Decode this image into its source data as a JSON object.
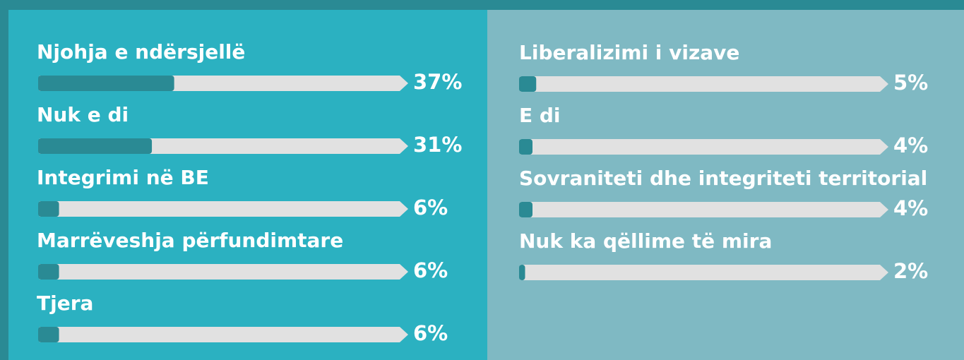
{
  "chart_data": [
    {
      "type": "progress",
      "categories": [
        "Njohja e ndërsjellë",
        "Nuk e di",
        "Integrimi në BE",
        "Marrëveshja përfundimtare",
        "Tjera"
      ],
      "values": [
        37,
        31,
        6,
        6,
        6
      ],
      "value_labels": [
        "37%",
        "31%",
        "6%",
        "6%",
        "6%"
      ],
      "xlim": [
        0,
        100
      ],
      "color": "#2a8a94",
      "track_color": "#e1e1e1"
    },
    {
      "type": "progress",
      "categories": [
        "Liberalizimi i vizave",
        "E di",
        "Sovraniteti dhe integriteti territorial",
        "Nuk ka qëllime të mira"
      ],
      "values": [
        5,
        4,
        4,
        2
      ],
      "value_labels": [
        "5%",
        "4%",
        "4%",
        "2%"
      ],
      "xlim": [
        0,
        100
      ],
      "color": "#2a8a94",
      "track_color": "#e1e1e1"
    }
  ]
}
